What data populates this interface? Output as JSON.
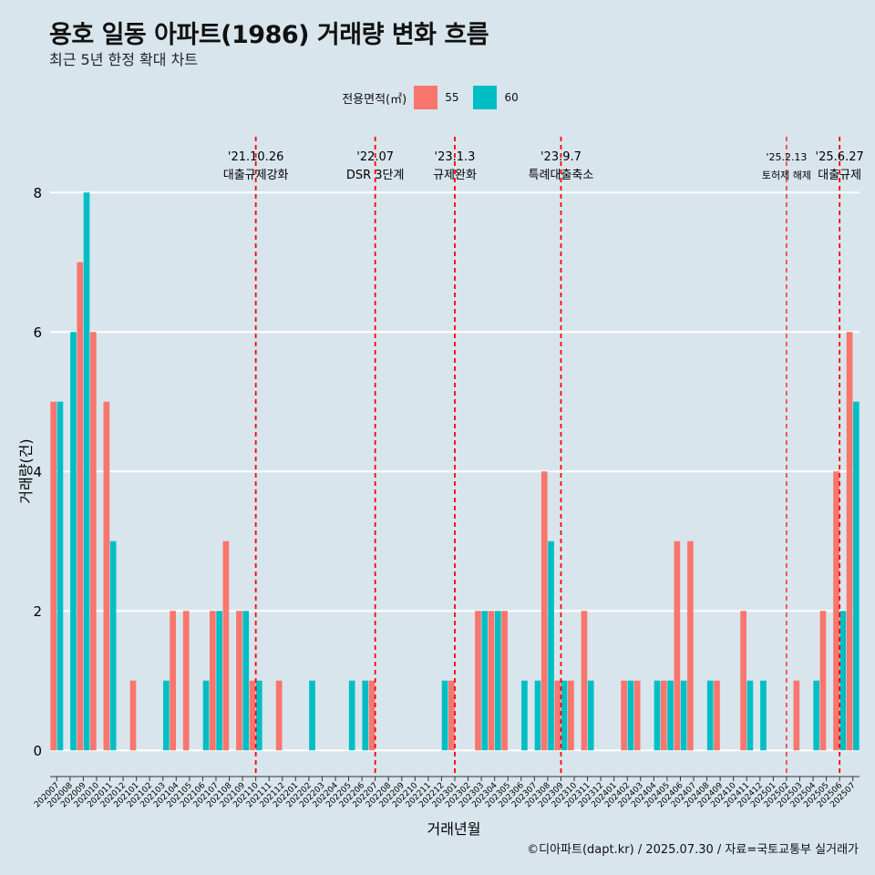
{
  "title": "용호 일동 아파트(1986) 거래량 변화 흐름",
  "subtitle": "최근 5년 한정 확대 차트",
  "caption": "©디아파트(dapt.kr) / 2025.07.30 / 자료=국토교통부 실거래가",
  "colors": {
    "55": "#f8766d",
    "60": "#00bfc4",
    "background": "#d8e5ec",
    "grid": "#ffffff",
    "event_line": "#ff0000"
  },
  "chart_data": {
    "type": "bar",
    "title": "용호 일동 아파트(1986) 거래량 변화 흐름",
    "xlabel": "거래년월",
    "ylabel": "거래량(건)",
    "ylim": [
      -0.35,
      8.8
    ],
    "yticks": [
      0,
      2,
      4,
      6,
      8
    ],
    "legend_title": "전용면적(㎡)",
    "categories": [
      "202007",
      "202008",
      "202009",
      "202010",
      "202011",
      "202012",
      "202101",
      "202102",
      "202103",
      "202104",
      "202105",
      "202106",
      "202107",
      "202108",
      "202109",
      "202110",
      "202111",
      "202112",
      "202201",
      "202202",
      "202203",
      "202204",
      "202205",
      "202206",
      "202207",
      "202208",
      "202209",
      "202210",
      "202211",
      "202212",
      "202301",
      "202302",
      "202303",
      "202304",
      "202305",
      "202306",
      "202307",
      "202308",
      "202309",
      "202310",
      "202311",
      "202312",
      "202401",
      "202402",
      "202403",
      "202404",
      "202405",
      "202406",
      "202407",
      "202408",
      "202409",
      "202410",
      "202411",
      "202412",
      "202501",
      "202502",
      "202503",
      "202504",
      "202505",
      "202506",
      "202507"
    ],
    "series": [
      {
        "name": "55",
        "values": [
          5,
          0,
          7,
          6,
          5,
          0,
          1,
          0,
          0,
          2,
          2,
          0,
          2,
          3,
          2,
          1,
          0,
          1,
          0,
          0,
          0,
          0,
          0,
          0,
          1,
          0,
          0,
          0,
          0,
          0,
          1,
          0,
          2,
          2,
          2,
          0,
          0,
          4,
          1,
          1,
          2,
          0,
          0,
          1,
          1,
          0,
          1,
          3,
          3,
          0,
          1,
          0,
          2,
          0,
          0,
          0,
          1,
          0,
          2,
          4,
          6
        ]
      },
      {
        "name": "60",
        "values": [
          5,
          6,
          8,
          0,
          3,
          0,
          0,
          0,
          1,
          0,
          0,
          1,
          2,
          0,
          2,
          1,
          0,
          0,
          0,
          1,
          0,
          0,
          1,
          1,
          0,
          0,
          0,
          0,
          0,
          1,
          0,
          0,
          2,
          2,
          0,
          1,
          1,
          3,
          1,
          0,
          1,
          0,
          0,
          1,
          0,
          1,
          1,
          1,
          0,
          1,
          0,
          0,
          1,
          1,
          0,
          0,
          0,
          1,
          0,
          2,
          5
        ]
      }
    ],
    "events": [
      {
        "date": "'21.10.26",
        "label": "대출규제강화",
        "month_index": 15
      },
      {
        "date": "'22.07",
        "label": "DSR 3단계",
        "month_index": 24
      },
      {
        "date": "'23.1.3",
        "label": "규제완화",
        "month_index": 30
      },
      {
        "date": "'23.9.7",
        "label": "특례대출축소",
        "month_index": 38
      },
      {
        "date": "'25.2.13",
        "label": "토허제 해제",
        "month_index": 55
      },
      {
        "date": "'25.6.27",
        "label": "대출규제",
        "month_index": 59
      }
    ]
  }
}
